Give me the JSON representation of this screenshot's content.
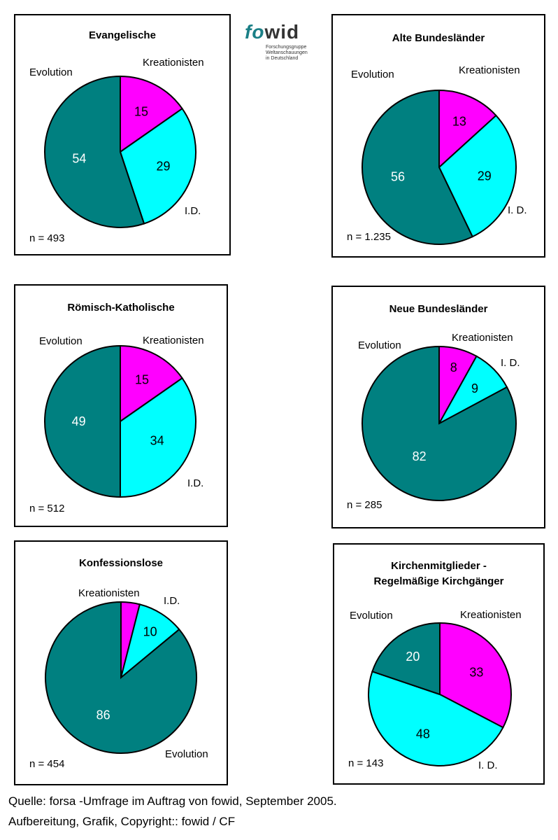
{
  "logo": {
    "name": "fowid",
    "name_part1": "fo",
    "name_part2": "wid",
    "subtitle_line1": "Forschungsgruppe",
    "subtitle_line2": "Weltanschauungen",
    "subtitle_line3": "in Deutschland"
  },
  "colors": {
    "evolution": "#008080",
    "kreationisten": "#ff00ff",
    "id": "#00ffff"
  },
  "chart_data": [
    {
      "type": "pie",
      "title": "Evangelische",
      "n": "n = 493",
      "slices": [
        {
          "label": "Kreationisten",
          "value": 15
        },
        {
          "label": "I.D.",
          "value": 29
        },
        {
          "label": "Evolution",
          "value": 54
        }
      ]
    },
    {
      "type": "pie",
      "title": "Alte Bundesländer",
      "n": "n = 1.235",
      "slices": [
        {
          "label": "Kreationisten",
          "value": 13
        },
        {
          "label": "I. D.",
          "value": 29
        },
        {
          "label": "Evolution",
          "value": 56
        }
      ]
    },
    {
      "type": "pie",
      "title": "Römisch-Katholische",
      "n": "n = 512",
      "slices": [
        {
          "label": "Kreationisten",
          "value": 15
        },
        {
          "label": "I.D.",
          "value": 34
        },
        {
          "label": "Evolution",
          "value": 49
        }
      ]
    },
    {
      "type": "pie",
      "title": "Neue Bundesländer",
      "n": "n = 285",
      "slices": [
        {
          "label": "Kreationisten",
          "value": 8
        },
        {
          "label": "I. D.",
          "value": 9
        },
        {
          "label": "Evolution",
          "value": 82
        }
      ]
    },
    {
      "type": "pie",
      "title": "Konfessionslose",
      "n": "n = 454",
      "slices": [
        {
          "label": "Kreationisten",
          "value": 4,
          "value_label": ""
        },
        {
          "label": "I.D.",
          "value": 10
        },
        {
          "label": "Evolution",
          "value": 86
        }
      ]
    },
    {
      "type": "pie",
      "title": "Kirchenmitglieder - Regelmäßige Kirchgänger",
      "title_line1": "Kirchenmitglieder -",
      "title_line2": "Regelmäßige Kirchgänger",
      "n": "n = 143",
      "start_offset_deg": 0,
      "slices": [
        {
          "label": "Kreationisten",
          "value": 33
        },
        {
          "label": "I. D.",
          "value": 48
        },
        {
          "label": "Evolution",
          "value": 20
        }
      ]
    }
  ],
  "source": {
    "line1": "Quelle: forsa -Umfrage im Auftrag von fowid, September 2005.",
    "line2": "Aufbereitung, Grafik, Copyright:: fowid / CF"
  }
}
